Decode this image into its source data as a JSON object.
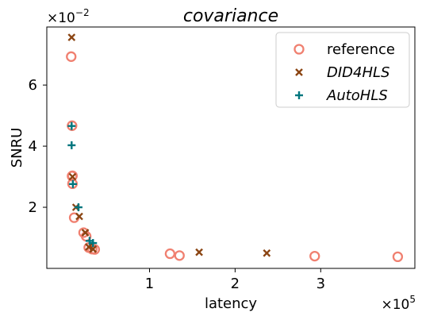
{
  "chart_data": {
    "type": "scatter",
    "title": "covariance",
    "xlabel": "latency",
    "ylabel": "SNRU",
    "x_multiplier_label": "×10",
    "x_multiplier_exp": "5",
    "y_multiplier_label": "×10",
    "y_multiplier_exp": "−2",
    "xlim": [
      -20000,
      410000
    ],
    "ylim": [
      0.0,
      0.079
    ],
    "x_ticks": [
      100000,
      200000,
      300000
    ],
    "x_tick_labels": [
      "1",
      "2",
      "3"
    ],
    "y_ticks": [
      0.02,
      0.04,
      0.06
    ],
    "y_tick_labels": [
      "2",
      "4",
      "6"
    ],
    "grid": false,
    "legend_position": "top-right",
    "series": [
      {
        "name": "reference",
        "marker": "circle-open",
        "color": "#f08070",
        "italic": false,
        "points": [
          [
            8500,
            0.0693
          ],
          [
            9500,
            0.0467
          ],
          [
            10000,
            0.0303
          ],
          [
            9500,
            0.0302
          ],
          [
            10000,
            0.0277
          ],
          [
            12000,
            0.0166
          ],
          [
            23000,
            0.0117
          ],
          [
            26000,
            0.0105
          ],
          [
            29000,
            0.0068
          ],
          [
            33000,
            0.0063
          ],
          [
            36000,
            0.0062
          ],
          [
            124000,
            0.0048
          ],
          [
            135000,
            0.0042
          ],
          [
            293000,
            0.004
          ],
          [
            390000,
            0.0038
          ]
        ]
      },
      {
        "name": "DID4HLS",
        "marker": "x",
        "color": "#8b4513",
        "italic": true,
        "points": [
          [
            9000,
            0.0756
          ],
          [
            10000,
            0.03
          ],
          [
            14000,
            0.02
          ],
          [
            18000,
            0.017
          ],
          [
            25000,
            0.0117
          ],
          [
            29000,
            0.007
          ],
          [
            34000,
            0.0063
          ],
          [
            158000,
            0.0053
          ],
          [
            237000,
            0.005
          ]
        ]
      },
      {
        "name": "AutoHLS",
        "marker": "plus",
        "color": "#00767e",
        "italic": true,
        "points": [
          [
            9000,
            0.0466
          ],
          [
            9000,
            0.0403
          ],
          [
            10500,
            0.0276
          ],
          [
            17000,
            0.02
          ],
          [
            30000,
            0.009
          ],
          [
            34000,
            0.0083
          ]
        ]
      }
    ]
  }
}
